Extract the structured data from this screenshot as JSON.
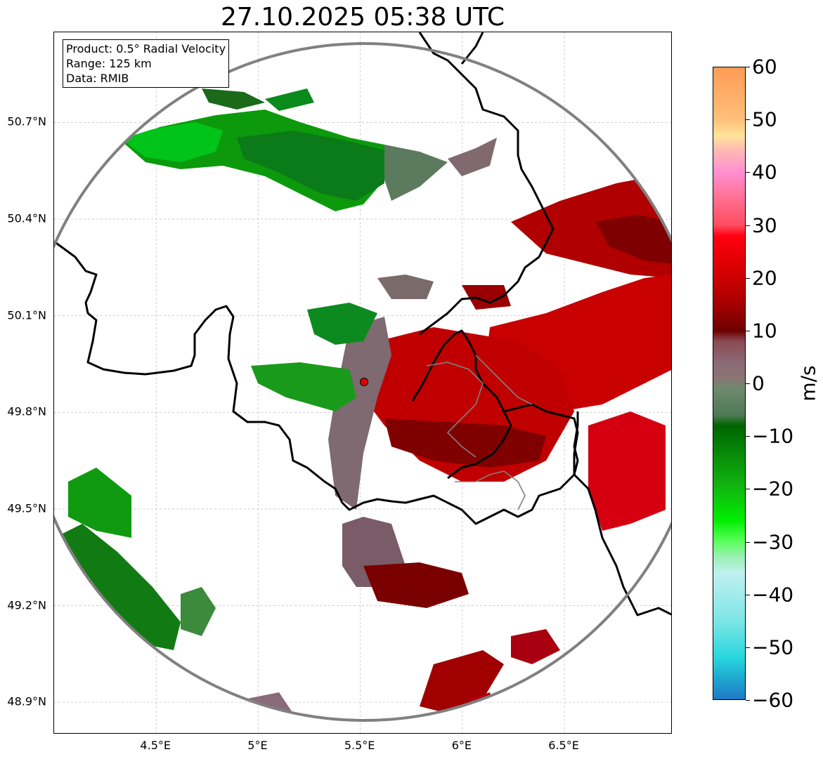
{
  "title": "27.10.2025 05:38 UTC",
  "info_box": {
    "product": "Product: 0.5° Radial Velocity",
    "range": "Range: 125 km",
    "data": "Data: RMIB"
  },
  "map": {
    "radar_site": {
      "lon": 5.505,
      "lat": 49.914
    },
    "lon_range": [
      4.0,
      7.03
    ],
    "lat_range": [
      48.8,
      50.98
    ],
    "lat_ticks": [
      "50.7°N",
      "50.4°N",
      "50.1°N",
      "49.8°N",
      "49.5°N",
      "49.2°N",
      "48.9°N"
    ],
    "lat_tick_values": [
      50.7,
      50.4,
      50.1,
      49.8,
      49.5,
      49.2,
      48.9
    ],
    "lon_ticks": [
      "4.5°E",
      "5°E",
      "5.5°E",
      "6°E",
      "6.5°E"
    ],
    "lon_tick_values": [
      4.5,
      5.0,
      5.5,
      6.0,
      6.5
    ],
    "range_ring_color": "#808080",
    "border_color": "#000000",
    "subregion_border_color": "#808080",
    "radar_marker_color": "#e00000"
  },
  "colorbar": {
    "unit": "m/s",
    "min": -60,
    "max": 60,
    "tick_labels": [
      "60",
      "50",
      "40",
      "30",
      "20",
      "10",
      "0",
      "−10",
      "−20",
      "−30",
      "−40",
      "−50",
      "−60"
    ],
    "tick_values": [
      60,
      50,
      40,
      30,
      20,
      10,
      0,
      -10,
      -20,
      -30,
      -40,
      -50,
      -60
    ],
    "stops": [
      {
        "v": 60,
        "c": "#ff9b55"
      },
      {
        "v": 50,
        "c": "#ffc07a"
      },
      {
        "v": 47,
        "c": "#ffe39a"
      },
      {
        "v": 44,
        "c": "#ffb6b6"
      },
      {
        "v": 40,
        "c": "#ff8fd0"
      },
      {
        "v": 35,
        "c": "#ff6f90"
      },
      {
        "v": 30,
        "c": "#ff4b60"
      },
      {
        "v": 28,
        "c": "#ff0010"
      },
      {
        "v": 20,
        "c": "#cc0000"
      },
      {
        "v": 15,
        "c": "#a60000"
      },
      {
        "v": 10,
        "c": "#6e0000"
      },
      {
        "v": 8,
        "c": "#8a4a52"
      },
      {
        "v": 4,
        "c": "#8a6a74"
      },
      {
        "v": 1,
        "c": "#8a7474"
      },
      {
        "v": -1,
        "c": "#6e8a6e"
      },
      {
        "v": -6,
        "c": "#4f7a55"
      },
      {
        "v": -8,
        "c": "#006400"
      },
      {
        "v": -20,
        "c": "#11b811"
      },
      {
        "v": -26,
        "c": "#00ee00"
      },
      {
        "v": -30,
        "c": "#5cff5c"
      },
      {
        "v": -33,
        "c": "#9af0b4"
      },
      {
        "v": -36,
        "c": "#c0f0f0"
      },
      {
        "v": -45,
        "c": "#7ee6e6"
      },
      {
        "v": -52,
        "c": "#2ad8dd"
      },
      {
        "v": -56,
        "c": "#1ea8d0"
      },
      {
        "v": -60,
        "c": "#1f78c8"
      }
    ]
  }
}
